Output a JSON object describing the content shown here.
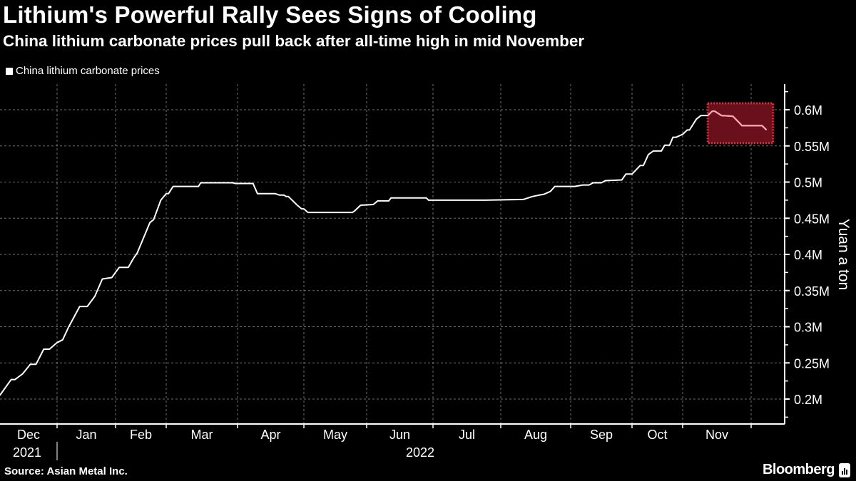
{
  "header": {
    "title": "Lithium's Powerful Rally Sees Signs of Cooling",
    "subtitle": "China lithium carbonate prices pull back after all-time high in mid November"
  },
  "footer": {
    "source": "Source: Asian Metal Inc.",
    "brand": "Bloomberg"
  },
  "colors": {
    "background": "#000000",
    "line": "#ffffff",
    "highlight_fill": "#6a0f1c",
    "highlight_border": "#e8283c",
    "highlight_line": "#f4a6b0",
    "grid": "#8a8a8a"
  },
  "chart_data": {
    "type": "line",
    "title": "Lithium's Powerful Rally Sees Signs of Cooling",
    "subtitle": "China lithium carbonate prices pull back after all-time high in mid November",
    "ylabel": "Yuan a ton",
    "xlabel": "",
    "legend": {
      "placement": "top-left",
      "entries": [
        "China lithium carbonate prices"
      ]
    },
    "grid": true,
    "y_axis_side": "right",
    "ylim": [
      165000,
      625000
    ],
    "y_ticks": [
      200000,
      250000,
      300000,
      350000,
      400000,
      450000,
      500000,
      550000,
      600000
    ],
    "y_tick_labels": [
      "0.2M",
      "0.25M",
      "0.3M",
      "0.35M",
      "0.4M",
      "0.45M",
      "0.5M",
      "0.55M",
      "0.6M"
    ],
    "x_tick_labels": [
      "Dec",
      "Jan",
      "Feb",
      "Mar",
      "Apr",
      "May",
      "Jun",
      "Jul",
      "Aug",
      "Sep",
      "Oct",
      "Nov"
    ],
    "x_year_labels": [
      "2021",
      "2022"
    ],
    "highlight": {
      "x_start": "2022-11-12",
      "x_end": "2022-12-11",
      "y_low": 554000,
      "y_high": 609000
    },
    "series": [
      {
        "name": "China lithium carbonate prices",
        "x": [
          "2021-12-02",
          "2021-12-08",
          "2021-12-10",
          "2021-12-14",
          "2021-12-18",
          "2021-12-21",
          "2021-12-25",
          "2021-12-28",
          "2022-01-01",
          "2022-01-04",
          "2022-01-07",
          "2022-01-13",
          "2022-01-17",
          "2022-01-21",
          "2022-01-25",
          "2022-01-30",
          "2022-02-03",
          "2022-02-08",
          "2022-02-11",
          "2022-02-13",
          "2022-02-20",
          "2022-02-22",
          "2022-02-26",
          "2022-03-01",
          "2022-03-02",
          "2022-03-04",
          "2022-03-15",
          "2022-03-16",
          "2022-03-30",
          "2022-03-31",
          "2022-04-08",
          "2022-04-10",
          "2022-04-18",
          "2022-04-20",
          "2022-04-22",
          "2022-04-23",
          "2022-04-24",
          "2022-04-26",
          "2022-04-28",
          "2022-04-30",
          "2022-05-01",
          "2022-05-03",
          "2022-05-25",
          "2022-05-26",
          "2022-05-29",
          "2022-06-04",
          "2022-06-06",
          "2022-06-11",
          "2022-06-12",
          "2022-06-28",
          "2022-06-29",
          "2022-07-25",
          "2022-08-11",
          "2022-08-15",
          "2022-08-18",
          "2022-08-20",
          "2022-08-23",
          "2022-08-25",
          "2022-09-03",
          "2022-09-07",
          "2022-09-10",
          "2022-09-12",
          "2022-09-16",
          "2022-09-18",
          "2022-09-26",
          "2022-09-28",
          "2022-10-01",
          "2022-10-06",
          "2022-10-08",
          "2022-10-11",
          "2022-10-14",
          "2022-10-19",
          "2022-10-21",
          "2022-10-24",
          "2022-10-26",
          "2022-10-28",
          "2022-11-01",
          "2022-11-03",
          "2022-11-04",
          "2022-11-07",
          "2022-11-09",
          "2022-11-12",
          "2022-11-14",
          "2022-11-15",
          "2022-11-18",
          "2022-11-23",
          "2022-11-27",
          "2022-12-06",
          "2022-12-08"
        ],
        "values": [
          205000,
          227000,
          227000,
          235000,
          248000,
          248000,
          269000,
          269000,
          278000,
          282000,
          299000,
          328000,
          328000,
          342000,
          366000,
          368000,
          382000,
          382000,
          395000,
          402000,
          444000,
          448000,
          475000,
          484000,
          484000,
          494000,
          494000,
          499000,
          499000,
          498000,
          498000,
          484000,
          484000,
          482000,
          482000,
          480000,
          480000,
          474000,
          468000,
          463000,
          463000,
          458000,
          458000,
          460000,
          468000,
          469000,
          474000,
          474000,
          478000,
          478000,
          475000,
          475000,
          476000,
          480000,
          482000,
          483000,
          487000,
          494000,
          494000,
          496000,
          496000,
          499000,
          499000,
          502000,
          503000,
          511000,
          511000,
          523000,
          523000,
          538000,
          543000,
          543000,
          551000,
          551000,
          562000,
          562000,
          566000,
          572000,
          572000,
          587000,
          592000,
          592000,
          598000,
          598000,
          592000,
          591000,
          578000,
          578000,
          572000
        ]
      }
    ]
  }
}
